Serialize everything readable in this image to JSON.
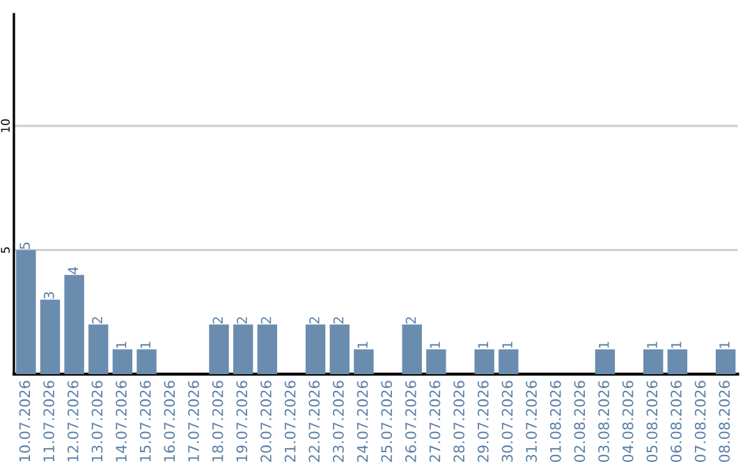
{
  "chart_data": {
    "type": "bar",
    "categories": [
      "10.07.2026",
      "11.07.2026",
      "12.07.2026",
      "13.07.2026",
      "14.07.2026",
      "15.07.2026",
      "16.07.2026",
      "17.07.2026",
      "18.07.2026",
      "19.07.2026",
      "20.07.2026",
      "21.07.2026",
      "22.07.2026",
      "23.07.2026",
      "24.07.2026",
      "25.07.2026",
      "26.07.2026",
      "27.07.2026",
      "28.07.2026",
      "29.07.2026",
      "30.07.2026",
      "31.07.2026",
      "01.08.2026",
      "02.08.2026",
      "03.08.2026",
      "04.08.2026",
      "05.08.2026",
      "06.08.2026",
      "07.08.2026",
      "08.08.2026"
    ],
    "values": [
      5,
      3,
      4,
      2,
      1,
      1,
      0,
      0,
      2,
      2,
      2,
      0,
      2,
      2,
      1,
      0,
      2,
      1,
      0,
      1,
      1,
      0,
      0,
      0,
      1,
      0,
      1,
      1,
      0,
      1
    ],
    "value_labels": [
      "5",
      "3",
      "4",
      "2",
      "1",
      "1",
      null,
      null,
      "2",
      "2",
      "2",
      null,
      "2",
      "2",
      "1",
      null,
      "2",
      "1",
      null,
      "1",
      "1",
      null,
      null,
      null,
      "1",
      null,
      "1",
      "1",
      null,
      "1"
    ],
    "color": "#6a8caf",
    "ylim": [
      0,
      14.5
    ],
    "yticks": [
      5,
      10
    ],
    "grid": "y"
  }
}
